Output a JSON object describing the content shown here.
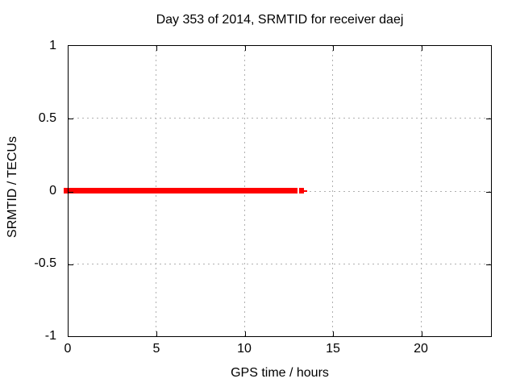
{
  "chart": {
    "title": "Day 353 of 2014, SRMTID for receiver daej",
    "x_axis": {
      "label": "GPS time / hours",
      "ticks": [
        {
          "value": 0,
          "label": "0"
        },
        {
          "value": 5,
          "label": "5"
        },
        {
          "value": 10,
          "label": "10"
        },
        {
          "value": 15,
          "label": "15"
        },
        {
          "value": 20,
          "label": "20"
        }
      ]
    },
    "y_axis": {
      "label": "SRMTID / TECUs",
      "ticks": [
        {
          "value": 1,
          "label": "1"
        },
        {
          "value": 0.5,
          "label": "0.5"
        },
        {
          "value": 0,
          "label": "0"
        },
        {
          "value": -0.5,
          "label": "-0.5"
        },
        {
          "value": -1,
          "label": "-1"
        }
      ]
    },
    "colors": {
      "series": "#ff0000",
      "grid": "#b0b0b0",
      "axis": "#000000",
      "background": "#ffffff",
      "text": "#000000"
    }
  },
  "chart_data": {
    "type": "line",
    "title": "Day 353 of 2014, SRMTID for receiver daej",
    "xlabel": "GPS time / hours",
    "ylabel": "SRMTID / TECUs",
    "xlim": [
      0,
      24
    ],
    "ylim": [
      -1,
      1
    ],
    "x_ticks": [
      0,
      5,
      10,
      15,
      20
    ],
    "y_ticks": [
      1,
      0.5,
      0,
      -0.5,
      -1
    ],
    "grid": true,
    "legend": "none",
    "series": [
      {
        "name": "SRMTID",
        "color": "#ff0000",
        "style": "dense thick band of point markers at constant value",
        "y_value": 0,
        "segments_hours": [
          [
            0.0,
            13.0
          ],
          [
            13.1,
            13.4
          ]
        ],
        "sparse_tail_end_hour": 13.5,
        "description": "SRMTID is 0 TECUs for all observed epochs; data present from 0 h to about 13.5 h GPS time with a brief gap near 13.0-13.1 h, no data after ~13.5 h"
      }
    ]
  }
}
